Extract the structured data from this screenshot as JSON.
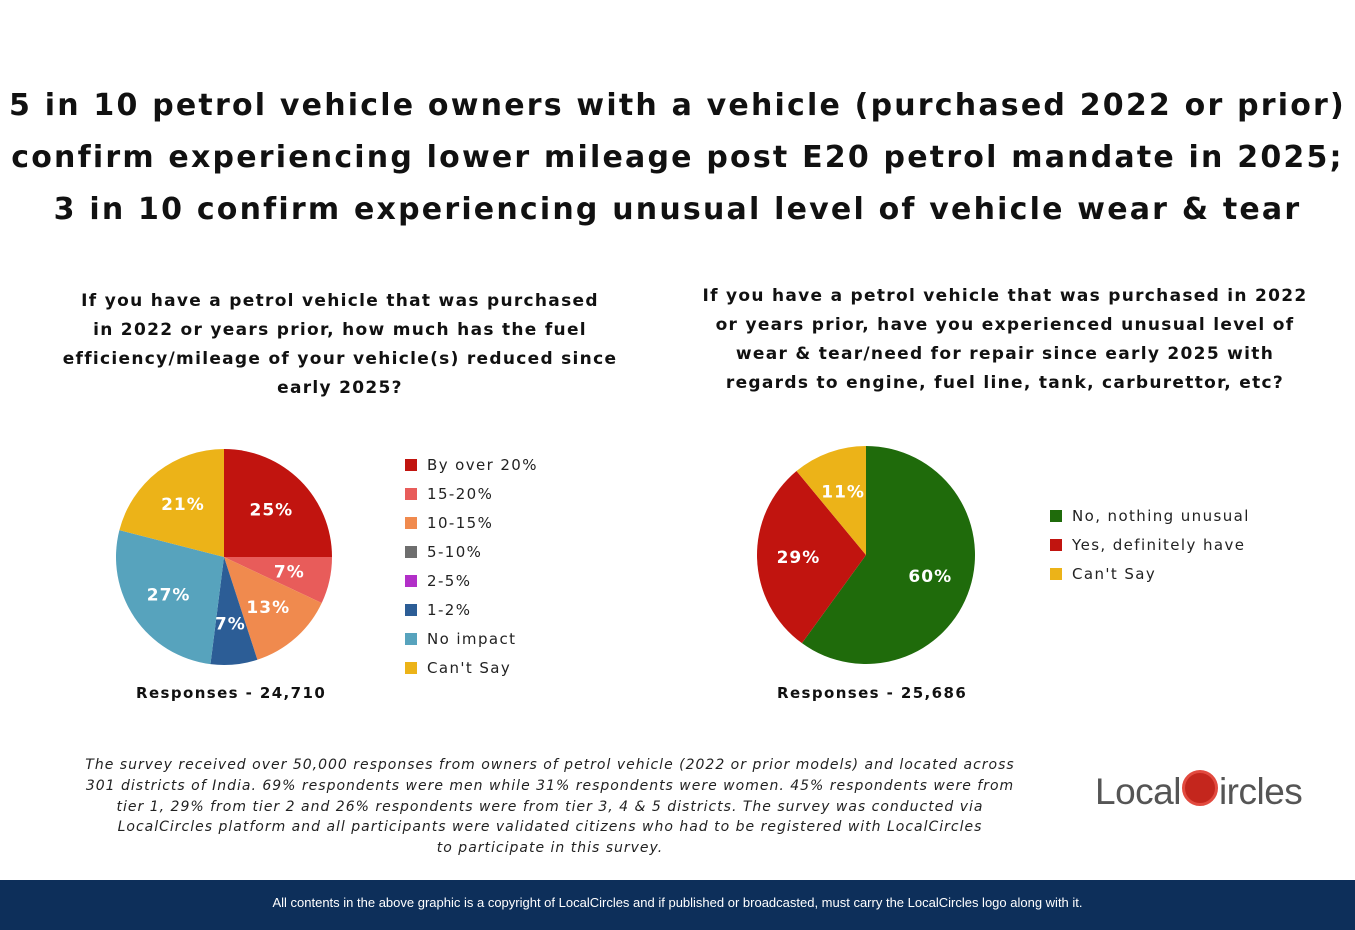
{
  "title_lines": [
    "5 in 10 petrol vehicle owners with a vehicle (purchased 2022 or prior)",
    "confirm experiencing lower mileage post E20 petrol mandate in 2025;",
    "3 in 10 confirm experiencing unusual level of vehicle wear & tear"
  ],
  "chart_data": [
    {
      "type": "pie",
      "title": "If you have a petrol vehicle that was purchased in 2022 or years prior, how much has the fuel efficiency/mileage of your vehicle(s) reduced since early 2025?",
      "categories": [
        "By over 20%",
        "15-20%",
        "10-15%",
        "5-10%",
        "2-5%",
        "1-2%",
        "No impact",
        "Can't Say"
      ],
      "values": [
        25,
        7,
        13,
        0,
        0,
        7,
        27,
        21
      ],
      "colors": [
        "#c1140f",
        "#e85c5a",
        "#f08a4e",
        "#6e6e6e",
        "#b22fc8",
        "#2c5d96",
        "#57a3bd",
        "#ecb318"
      ],
      "responses": "Responses - 24,710",
      "legend_position": "right"
    },
    {
      "type": "pie",
      "title": "If you have a petrol vehicle that was purchased in 2022 or years prior, have you experienced unusual level of wear & tear/need for repair since early 2025 with regards to engine, fuel line, tank, carburettor, etc?",
      "categories": [
        "No, nothing unusual",
        "Yes, definitely have",
        "Can't Say"
      ],
      "values": [
        60,
        29,
        11
      ],
      "colors": [
        "#1f6b0b",
        "#c1140f",
        "#ecb318"
      ],
      "responses": "Responses - 25,686",
      "legend_position": "right"
    }
  ],
  "q1_lines": [
    "If you have a petrol vehicle that was purchased",
    "in 2022 or years prior, how much has the fuel",
    "efficiency/mileage of your vehicle(s) reduced since",
    "early 2025?"
  ],
  "q2_lines": [
    "If you have a petrol vehicle that was purchased in 2022",
    "or years prior, have you experienced unusual level of",
    "wear & tear/need for repair since early 2025 with",
    "regards to engine, fuel line, tank, carburettor, etc?"
  ],
  "note_lines": [
    "The survey received over 50,000 responses from owners of petrol vehicle (2022 or prior models) and located across",
    "301 districts of India. 69% respondents were men while 31% respondents were women. 45% respondents were from",
    "tier 1, 29% from tier 2 and 26% respondents were from tier 3, 4 & 5 districts. The survey was conducted via",
    "LocalCircles platform and all participants were validated citizens who had to be registered with LocalCircles",
    "to participate in this survey."
  ],
  "logo": {
    "text": "LocalCircles",
    "part1": "Local",
    "part2": "ircles"
  },
  "footer": "All contents in the above graphic is a copyright of LocalCircles and if published or broadcasted, must carry the LocalCircles logo along with it."
}
